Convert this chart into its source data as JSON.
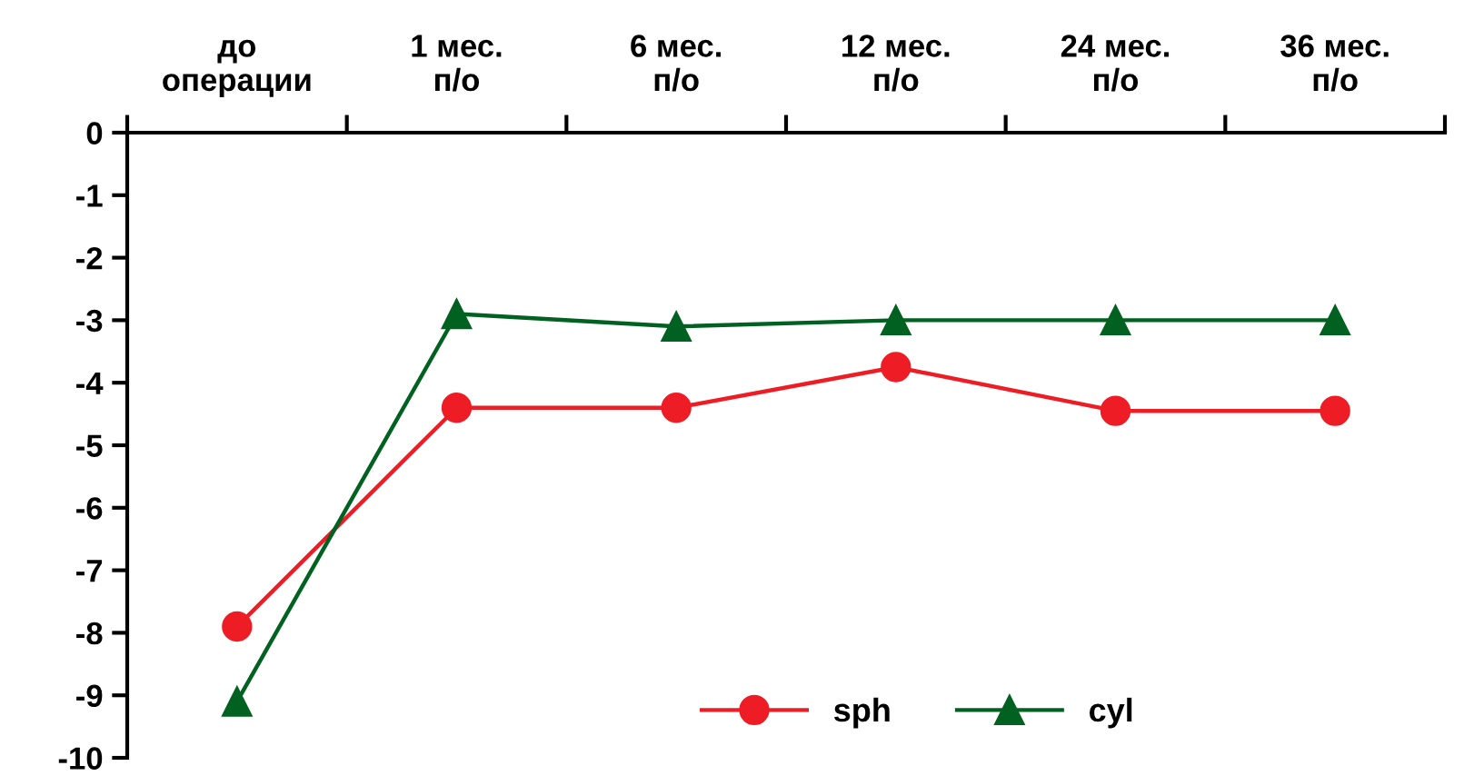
{
  "chart_data": {
    "type": "line",
    "categories": [
      "до\nоперации",
      "1 мес.\nп/о",
      "6 мес.\nп/о",
      "12 мес.\nп/о",
      "24 мес.\nп/о",
      "36 мес.\nп/о"
    ],
    "series": [
      {
        "name": "sph",
        "color": "#ee1c25",
        "marker": "circle",
        "values": [
          -7.9,
          -4.4,
          -4.4,
          -3.75,
          -4.45,
          -4.45
        ]
      },
      {
        "name": "cyl",
        "color": "#006121",
        "marker": "triangle",
        "values": [
          -9.1,
          -2.9,
          -3.1,
          -3.0,
          -3.0,
          -3.0
        ]
      }
    ],
    "ylim": [
      -10,
      0
    ],
    "yticks": [
      0,
      -1,
      -2,
      -3,
      -4,
      -5,
      -6,
      -7,
      -8,
      -9,
      -10
    ],
    "grid": false,
    "legend": "bottom",
    "line_style": "solid"
  }
}
